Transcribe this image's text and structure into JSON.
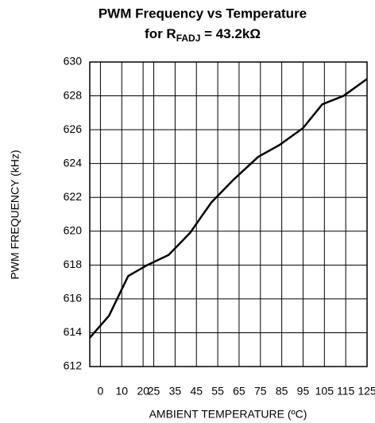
{
  "chart_data": {
    "type": "line",
    "title": "PWM Frequency vs Temperature",
    "subtitle": {
      "text": "for R",
      "subscript": "FADJ",
      "rest": " = 43.2kΩ"
    },
    "x_label": "AMBIENT TEMPERATURE (ºC)",
    "y_label": "PWM FREQUENCY (kHz)",
    "x": [
      -5,
      4,
      13,
      22,
      32,
      42,
      52,
      62,
      74,
      84,
      95,
      104,
      114,
      125
    ],
    "series": [
      {
        "color": "#000000",
        "values": [
          613.7,
          615.0,
          617.35,
          618.0,
          618.6,
          619.9,
          621.7,
          623.0,
          624.4,
          625.1,
          626.1,
          627.5,
          628.0,
          629.0
        ]
      }
    ],
    "xlim": [
      -5,
      125
    ],
    "xticks": [
      0,
      10,
      20,
      25,
      35,
      45,
      55,
      65,
      75,
      85,
      95,
      105,
      115,
      125
    ],
    "ylim": [
      612,
      630
    ],
    "yticks": [
      612,
      614,
      616,
      618,
      620,
      622,
      624,
      626,
      628,
      630
    ],
    "grid": true
  }
}
